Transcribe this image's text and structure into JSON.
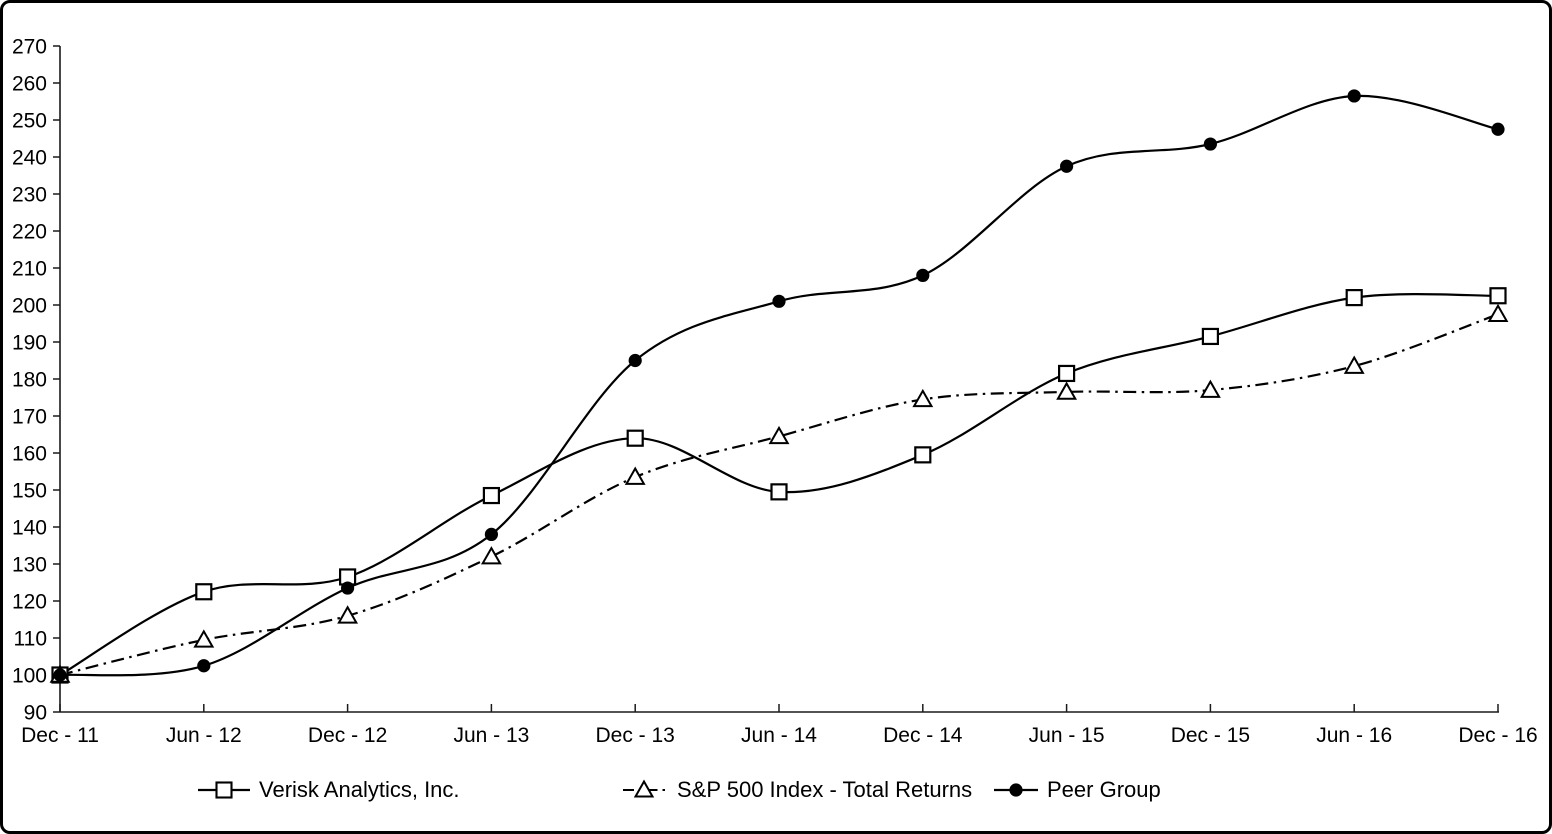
{
  "chart_data": {
    "type": "line",
    "title": "",
    "categories": [
      "Dec - 11",
      "Jun - 12",
      "Dec - 12",
      "Jun - 13",
      "Dec - 13",
      "Jun - 14",
      "Dec - 14",
      "Jun - 15",
      "Dec - 15",
      "Jun - 16",
      "Dec - 16"
    ],
    "series": [
      {
        "name": "Verisk Analytics, Inc.",
        "marker": "square-open",
        "line_style": "solid",
        "values": [
          100,
          122.5,
          126.5,
          148.5,
          164,
          149.5,
          159.5,
          181.5,
          191.5,
          202,
          202.5
        ]
      },
      {
        "name": "S&P 500 Index - Total Returns",
        "marker": "triangle-open",
        "line_style": "dash-dot",
        "values": [
          100,
          109.5,
          116,
          132,
          153.5,
          164.5,
          174.5,
          176.5,
          177,
          183.5,
          197.5
        ]
      },
      {
        "name": "Peer Group",
        "marker": "circle-filled",
        "line_style": "solid",
        "values": [
          100,
          102.5,
          123.5,
          138,
          185,
          201,
          208,
          237.5,
          243.5,
          256.5,
          247.5
        ]
      }
    ],
    "y_axis": {
      "min": 90,
      "max": 270,
      "step": 10
    },
    "ylim": [
      90,
      270
    ],
    "xlabel": "",
    "ylabel": "",
    "grid": false,
    "legend_position": "bottom",
    "colors": {
      "line": "#000000",
      "background": "#ffffff",
      "text": "#000000"
    }
  }
}
